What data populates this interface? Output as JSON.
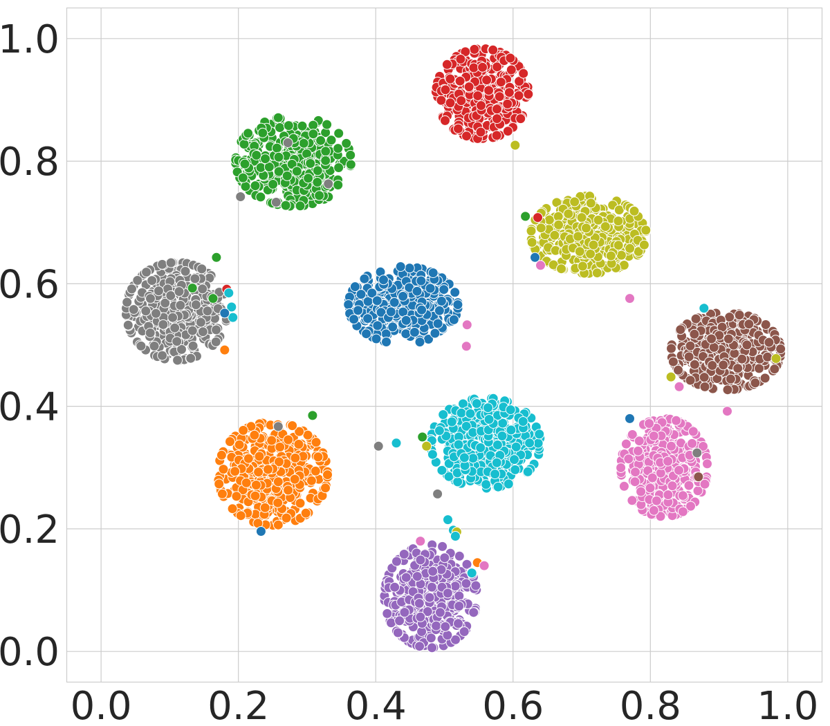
{
  "chart_data": {
    "type": "scatter",
    "title": "",
    "xlabel": "",
    "ylabel": "",
    "xlim": [
      -0.05,
      1.05
    ],
    "ylim": [
      -0.05,
      1.05
    ],
    "xticks": [
      "0.0",
      "0.2",
      "0.4",
      "0.6",
      "0.8",
      "1.0"
    ],
    "yticks": [
      "0.0",
      "0.2",
      "0.4",
      "0.6",
      "0.8",
      "1.0"
    ],
    "xtick_values": [
      0.0,
      0.2,
      0.4,
      0.6,
      0.8,
      1.0
    ],
    "ytick_values": [
      0.0,
      0.2,
      0.4,
      0.6,
      0.8,
      1.0
    ],
    "grid": true,
    "legend": "none",
    "marker_edge_color": "#ffffff",
    "clusters": [
      {
        "color": "#1f77b4",
        "center": [
          0.44,
          0.565
        ],
        "spread": [
          0.038,
          0.03
        ],
        "count": 420
      },
      {
        "color": "#ff7f0e",
        "center": [
          0.25,
          0.29
        ],
        "spread": [
          0.038,
          0.04
        ],
        "count": 420
      },
      {
        "color": "#2ca02c",
        "center": [
          0.28,
          0.8
        ],
        "spread": [
          0.04,
          0.035
        ],
        "count": 420
      },
      {
        "color": "#d62728",
        "center": [
          0.555,
          0.91
        ],
        "spread": [
          0.032,
          0.035
        ],
        "count": 420
      },
      {
        "color": "#9467bd",
        "center": [
          0.48,
          0.09
        ],
        "spread": [
          0.032,
          0.04
        ],
        "count": 420
      },
      {
        "color": "#8c564b",
        "center": [
          0.91,
          0.49
        ],
        "spread": [
          0.038,
          0.03
        ],
        "count": 420
      },
      {
        "color": "#e377c2",
        "center": [
          0.82,
          0.3
        ],
        "spread": [
          0.03,
          0.038
        ],
        "count": 420
      },
      {
        "color": "#7f7f7f",
        "center": [
          0.11,
          0.555
        ],
        "spread": [
          0.035,
          0.038
        ],
        "count": 420
      },
      {
        "color": "#bcbd22",
        "center": [
          0.71,
          0.68
        ],
        "spread": [
          0.04,
          0.03
        ],
        "count": 420
      },
      {
        "color": "#17becf",
        "center": [
          0.56,
          0.34
        ],
        "spread": [
          0.038,
          0.035
        ],
        "count": 420
      }
    ],
    "outliers": [
      {
        "color": "#2ca02c",
        "x": 0.618,
        "y": 0.71
      },
      {
        "color": "#d62728",
        "x": 0.636,
        "y": 0.708
      },
      {
        "color": "#1f77b4",
        "x": 0.632,
        "y": 0.643
      },
      {
        "color": "#e377c2",
        "x": 0.64,
        "y": 0.63
      },
      {
        "color": "#e377c2",
        "x": 0.77,
        "y": 0.576
      },
      {
        "color": "#bcbd22",
        "x": 0.603,
        "y": 0.826
      },
      {
        "color": "#2ca02c",
        "x": 0.168,
        "y": 0.643
      },
      {
        "color": "#2ca02c",
        "x": 0.133,
        "y": 0.593
      },
      {
        "color": "#2ca02c",
        "x": 0.163,
        "y": 0.576
      },
      {
        "color": "#d62728",
        "x": 0.183,
        "y": 0.591
      },
      {
        "color": "#17becf",
        "x": 0.186,
        "y": 0.585
      },
      {
        "color": "#17becf",
        "x": 0.19,
        "y": 0.562
      },
      {
        "color": "#17becf",
        "x": 0.192,
        "y": 0.545
      },
      {
        "color": "#1f77b4",
        "x": 0.18,
        "y": 0.552
      },
      {
        "color": "#ff7f0e",
        "x": 0.18,
        "y": 0.492
      },
      {
        "color": "#7f7f7f",
        "x": 0.272,
        "y": 0.83
      },
      {
        "color": "#7f7f7f",
        "x": 0.331,
        "y": 0.763
      },
      {
        "color": "#7f7f7f",
        "x": 0.203,
        "y": 0.742
      },
      {
        "color": "#7f7f7f",
        "x": 0.255,
        "y": 0.733
      },
      {
        "color": "#7f7f7f",
        "x": 0.258,
        "y": 0.367
      },
      {
        "color": "#2ca02c",
        "x": 0.308,
        "y": 0.385
      },
      {
        "color": "#1f77b4",
        "x": 0.233,
        "y": 0.196
      },
      {
        "color": "#e377c2",
        "x": 0.533,
        "y": 0.533
      },
      {
        "color": "#e377c2",
        "x": 0.532,
        "y": 0.498
      },
      {
        "color": "#7f7f7f",
        "x": 0.404,
        "y": 0.335
      },
      {
        "color": "#17becf",
        "x": 0.43,
        "y": 0.34
      },
      {
        "color": "#2ca02c",
        "x": 0.468,
        "y": 0.35
      },
      {
        "color": "#7f7f7f",
        "x": 0.49,
        "y": 0.257
      },
      {
        "color": "#bcbd22",
        "x": 0.474,
        "y": 0.335
      },
      {
        "color": "#17becf",
        "x": 0.505,
        "y": 0.215
      },
      {
        "color": "#17becf",
        "x": 0.513,
        "y": 0.198
      },
      {
        "color": "#bcbd22",
        "x": 0.518,
        "y": 0.195
      },
      {
        "color": "#17becf",
        "x": 0.516,
        "y": 0.188
      },
      {
        "color": "#ff7f0e",
        "x": 0.548,
        "y": 0.145
      },
      {
        "color": "#e377c2",
        "x": 0.558,
        "y": 0.14
      },
      {
        "color": "#17becf",
        "x": 0.54,
        "y": 0.128
      },
      {
        "color": "#e377c2",
        "x": 0.465,
        "y": 0.18
      },
      {
        "color": "#1f77b4",
        "x": 0.77,
        "y": 0.38
      },
      {
        "color": "#bcbd22",
        "x": 0.83,
        "y": 0.448
      },
      {
        "color": "#e377c2",
        "x": 0.842,
        "y": 0.432
      },
      {
        "color": "#7f7f7f",
        "x": 0.868,
        "y": 0.324
      },
      {
        "color": "#8c564b",
        "x": 0.87,
        "y": 0.285
      },
      {
        "color": "#e377c2",
        "x": 0.912,
        "y": 0.392
      },
      {
        "color": "#bcbd22",
        "x": 0.983,
        "y": 0.478
      },
      {
        "color": "#17becf",
        "x": 0.878,
        "y": 0.56
      }
    ]
  }
}
